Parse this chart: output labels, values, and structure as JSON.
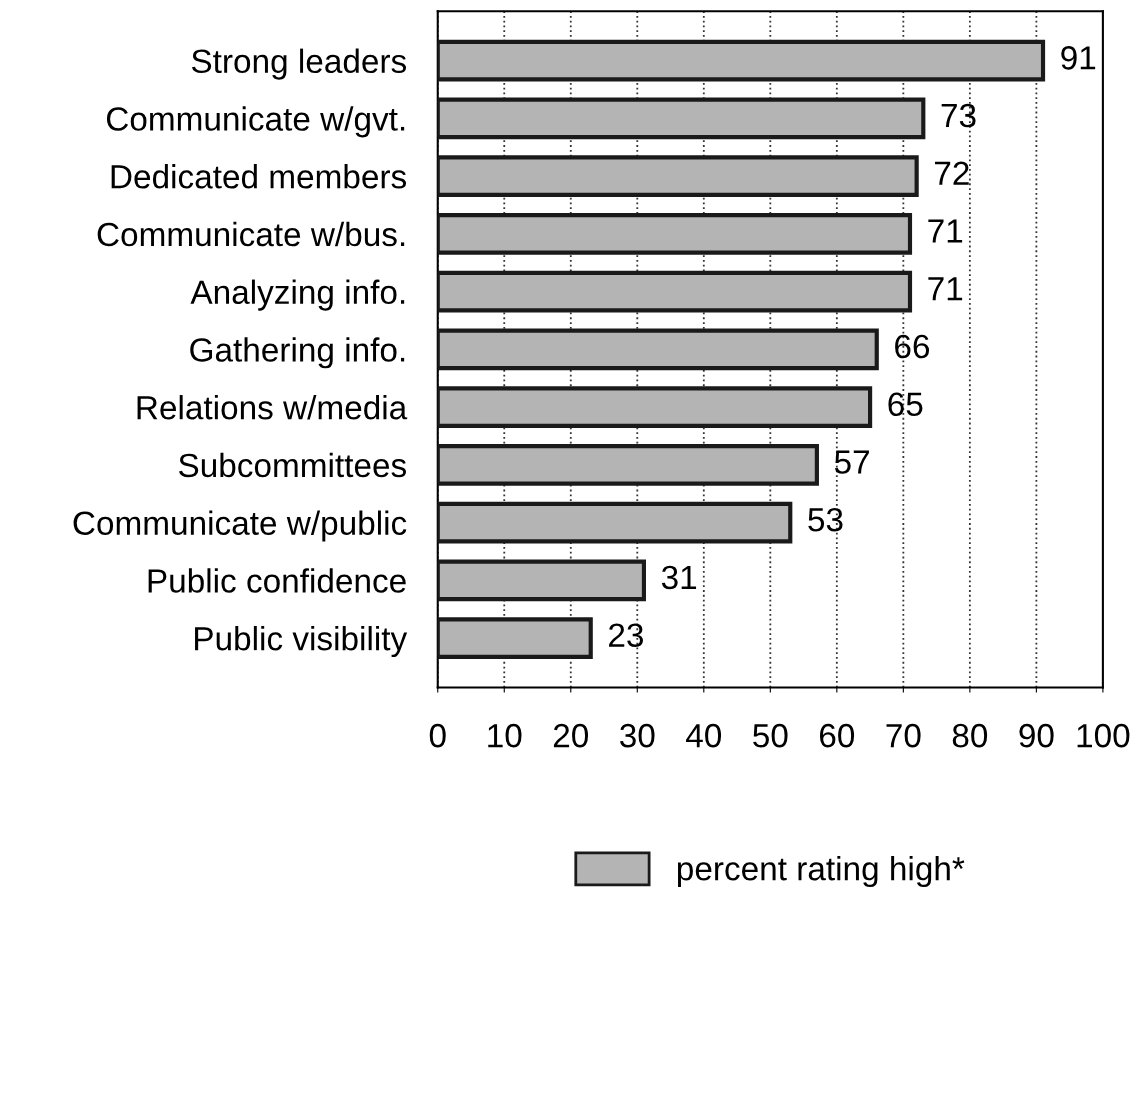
{
  "chart_data": {
    "type": "bar",
    "orientation": "horizontal",
    "categories": [
      "Strong leaders",
      "Communicate w/gvt.",
      "Dedicated members",
      "Communicate w/bus.",
      "Analyzing info.",
      "Gathering info.",
      "Relations w/media",
      "Subcommittees",
      "Communicate w/public",
      "Public confidence",
      "Public visibility"
    ],
    "series": [
      {
        "name": "percent rating high*",
        "color": "#b4b4b4",
        "values": [
          91,
          73,
          72,
          71,
          71,
          66,
          65,
          57,
          53,
          31,
          23
        ]
      }
    ],
    "xlim": [
      0,
      100
    ],
    "xticks": [
      0,
      10,
      20,
      30,
      40,
      50,
      60,
      70,
      80,
      90,
      100
    ],
    "grid": "x",
    "legend": "bottom",
    "data_labels": true
  }
}
